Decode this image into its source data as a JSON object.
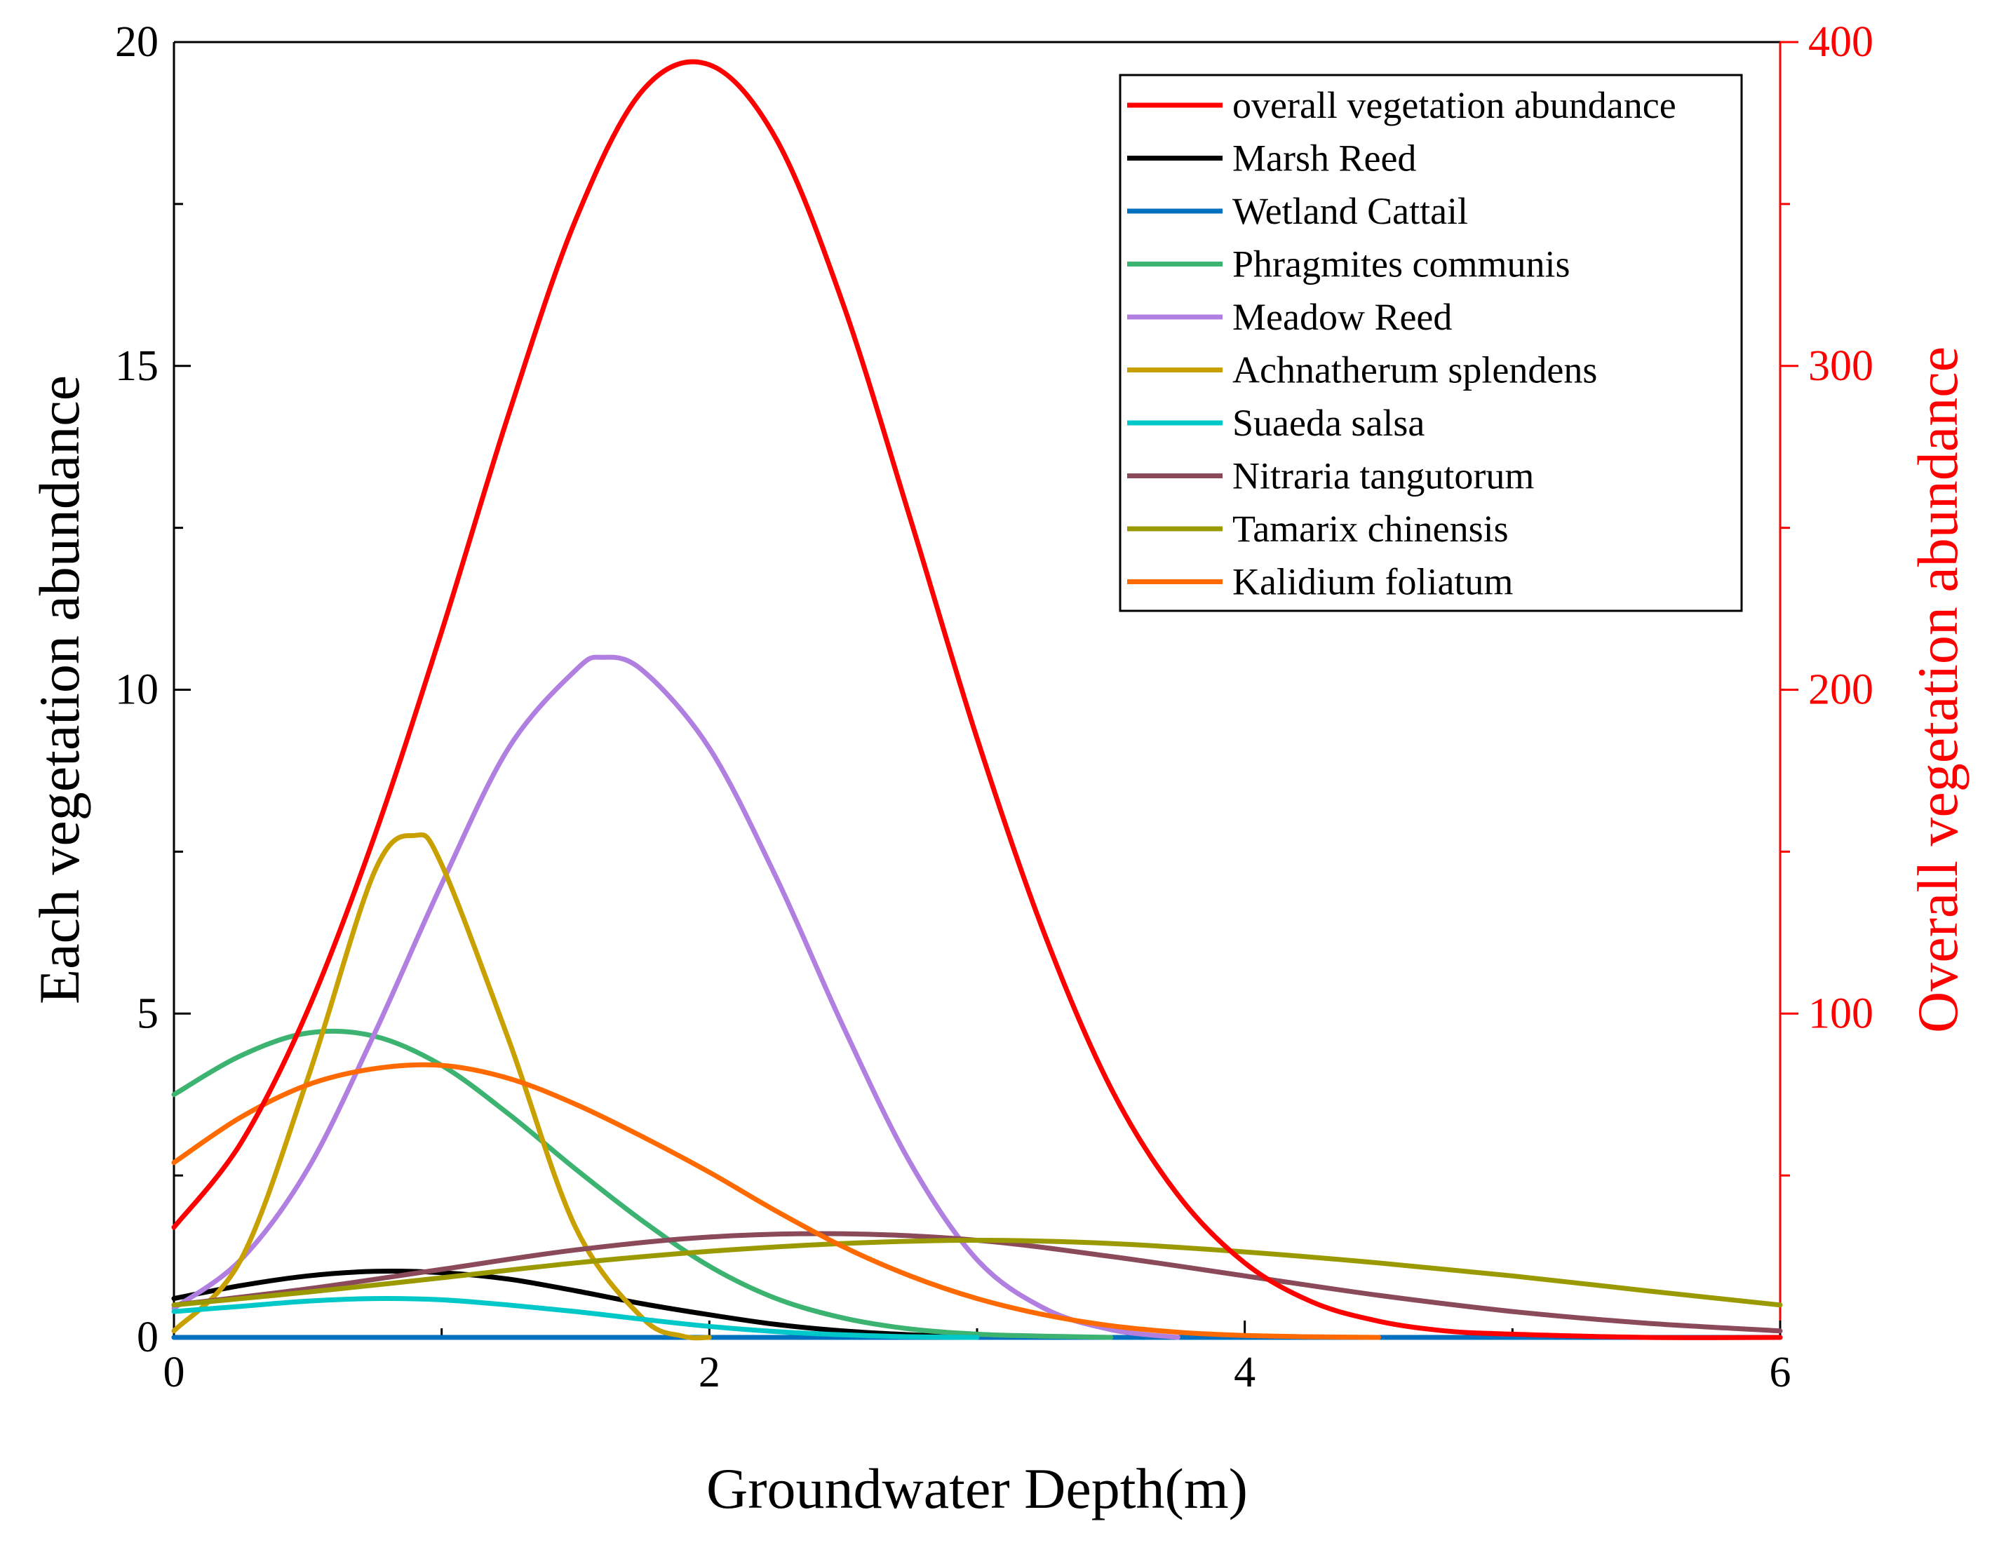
{
  "chart_data": {
    "type": "line",
    "title": "",
    "xlabel": "Groundwater Depth(m)",
    "ylabel_left": "Each vegetation abundance",
    "ylabel_right": "Overall vegetation abundance",
    "xlim": [
      0,
      6
    ],
    "ylim_left": [
      0,
      20
    ],
    "ylim_right": [
      0,
      400
    ],
    "x_ticks": [
      "0",
      "2",
      "4",
      "6"
    ],
    "y_ticks_left": [
      "0",
      "5",
      "10",
      "15",
      "20"
    ],
    "y_ticks_right": [
      "100",
      "200",
      "300",
      "400"
    ],
    "legend_position": "top-right",
    "series": [
      {
        "name": "overall vegetation abundance",
        "axis": "right",
        "color": "#ff0000",
        "x": [
          0,
          0.25,
          0.5,
          0.75,
          1.0,
          1.25,
          1.5,
          1.75,
          2.0,
          2.25,
          2.5,
          2.75,
          3.0,
          3.25,
          3.5,
          3.75,
          4.0,
          4.25,
          4.5,
          4.75,
          5.0,
          5.5,
          6.0
        ],
        "y": [
          34,
          60,
          101,
          155,
          218,
          285,
          345,
          385,
          393,
          370,
          319,
          253,
          185,
          125,
          77,
          44,
          23,
          11,
          5,
          2,
          1,
          0,
          0
        ]
      },
      {
        "name": "Marsh Reed",
        "axis": "left",
        "color": "#000000",
        "x": [
          0,
          0.25,
          0.5,
          0.75,
          1.0,
          1.25,
          1.5,
          1.75,
          2.0,
          2.25,
          2.5,
          2.75,
          3.0
        ],
        "y": [
          0.6,
          0.8,
          0.95,
          1.02,
          1.0,
          0.9,
          0.72,
          0.52,
          0.35,
          0.2,
          0.1,
          0.04,
          0
        ]
      },
      {
        "name": "Wetland Cattail",
        "axis": "left",
        "color": "#0070c0",
        "x": [
          0,
          1,
          2,
          3,
          4,
          5,
          6
        ],
        "y": [
          0,
          0,
          0,
          0,
          0,
          0,
          0
        ]
      },
      {
        "name": "Phragmites communis",
        "axis": "left",
        "color": "#3cb371",
        "x": [
          0,
          0.25,
          0.5,
          0.75,
          1.0,
          1.25,
          1.5,
          1.75,
          2.0,
          2.25,
          2.5,
          2.75,
          3.0,
          3.25,
          3.5
        ],
        "y": [
          3.75,
          4.35,
          4.7,
          4.65,
          4.2,
          3.45,
          2.6,
          1.8,
          1.1,
          0.6,
          0.3,
          0.13,
          0.05,
          0.02,
          0
        ]
      },
      {
        "name": "Meadow Reed",
        "axis": "left",
        "color": "#b07fe0",
        "x": [
          0,
          0.25,
          0.5,
          0.75,
          1.0,
          1.25,
          1.5,
          1.6,
          1.75,
          2.0,
          2.25,
          2.5,
          2.75,
          3.0,
          3.25,
          3.5,
          3.75
        ],
        "y": [
          0.45,
          1.2,
          2.6,
          4.7,
          7.0,
          9.1,
          10.3,
          10.5,
          10.3,
          9.1,
          7.1,
          4.8,
          2.7,
          1.2,
          0.45,
          0.12,
          0
        ]
      },
      {
        "name": "Achnatherum splendens",
        "axis": "left",
        "color": "#c8a000",
        "x": [
          0,
          0.25,
          0.5,
          0.75,
          0.9,
          1.0,
          1.25,
          1.5,
          1.75,
          1.9,
          2.0
        ],
        "y": [
          0.1,
          1.2,
          4.0,
          7.2,
          7.75,
          7.3,
          4.6,
          1.7,
          0.3,
          0.02,
          0
        ]
      },
      {
        "name": "Suaeda salsa",
        "axis": "left",
        "color": "#00c8c8",
        "x": [
          0,
          0.25,
          0.5,
          0.75,
          1.0,
          1.25,
          1.5,
          1.75,
          2.0,
          2.25,
          2.5,
          2.75,
          3.0
        ],
        "y": [
          0.4,
          0.48,
          0.56,
          0.6,
          0.58,
          0.5,
          0.4,
          0.28,
          0.17,
          0.09,
          0.04,
          0.01,
          0
        ]
      },
      {
        "name": "Nitraria tangutorum",
        "axis": "left",
        "color": "#8b4a5a",
        "x": [
          0,
          0.5,
          1.0,
          1.5,
          2.0,
          2.5,
          3.0,
          3.5,
          4.0,
          4.5,
          5.0,
          5.5,
          6.0
        ],
        "y": [
          0.5,
          0.75,
          1.05,
          1.35,
          1.55,
          1.6,
          1.5,
          1.25,
          0.95,
          0.65,
          0.4,
          0.22,
          0.1
        ]
      },
      {
        "name": "Tamarix chinensis",
        "axis": "left",
        "color": "#9a9a00",
        "x": [
          0,
          0.5,
          1.0,
          1.5,
          2.0,
          2.5,
          3.0,
          3.5,
          4.0,
          4.5,
          5.0,
          5.5,
          6.0
        ],
        "y": [
          0.5,
          0.7,
          0.92,
          1.15,
          1.33,
          1.45,
          1.5,
          1.45,
          1.32,
          1.15,
          0.95,
          0.72,
          0.5
        ]
      },
      {
        "name": "Kalidium foliatum",
        "axis": "left",
        "color": "#ff6a00",
        "x": [
          0,
          0.25,
          0.5,
          0.75,
          1.0,
          1.25,
          1.5,
          1.75,
          2.0,
          2.25,
          2.5,
          2.75,
          3.0,
          3.25,
          3.5,
          3.75,
          4.0,
          4.25,
          4.5
        ],
        "y": [
          2.7,
          3.4,
          3.9,
          4.15,
          4.2,
          4.0,
          3.6,
          3.1,
          2.55,
          1.95,
          1.4,
          0.95,
          0.6,
          0.35,
          0.18,
          0.08,
          0.03,
          0.01,
          0
        ]
      }
    ]
  }
}
